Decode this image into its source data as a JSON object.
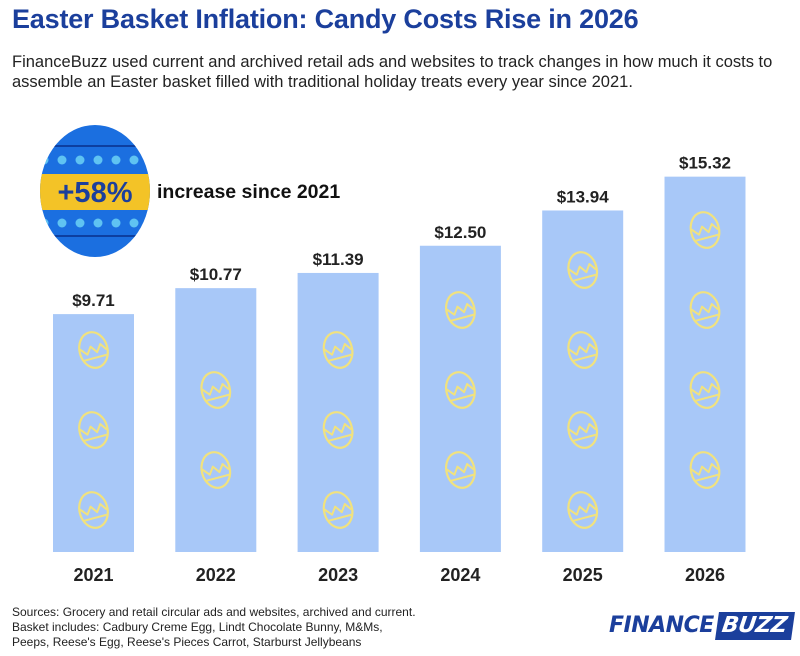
{
  "title": "Easter Basket Inflation: Candy Costs Rise in 2026",
  "subtitle": "FinanceBuzz used current and archived retail ads and websites to track changes in how much it costs to assemble an Easter basket filled with traditional holiday treats every year since 2021.",
  "callout": {
    "value": "+58%",
    "text": "increase since 2021",
    "icon": "easter-egg-icon"
  },
  "footer": {
    "sources": "Sources: Grocery and retail circular ads and websites, archived and current.",
    "basket_line1": "Basket includes: Cadbury Creme Egg, Lindt Chocolate Bunny, M&Ms,",
    "basket_line2": "Peeps, Reese's Egg, Reese's Pieces Carrot, Starburst Jellybeans"
  },
  "logo": {
    "finance": "FINANCE",
    "buzz": "BUZZ"
  },
  "colors": {
    "title": "#1b3f9c",
    "bar": "#a8c8f8",
    "bar_pattern": "#f1e27e",
    "egg_blue": "#1b6fe0",
    "egg_band": "#f3c327",
    "egg_dots": "#5fc3f2"
  },
  "chart_data": {
    "type": "bar",
    "categories": [
      "2021",
      "2022",
      "2023",
      "2024",
      "2025",
      "2026"
    ],
    "values": [
      9.71,
      10.77,
      11.39,
      12.5,
      13.94,
      15.32
    ],
    "value_labels": [
      "$9.71",
      "$10.77",
      "$11.39",
      "$12.50",
      "$13.94",
      "$15.32"
    ],
    "unit": "USD",
    "ylim": [
      0,
      16
    ],
    "grid": false,
    "legend": "none"
  }
}
